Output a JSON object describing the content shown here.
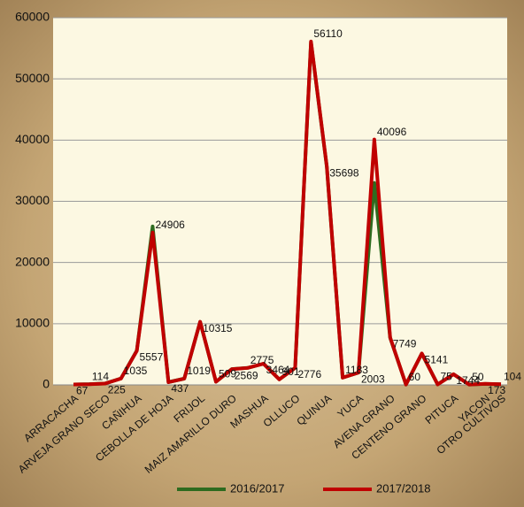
{
  "chart_data": {
    "type": "line",
    "categories": [
      "ARRACACHA",
      null,
      "ARVEJA GRANO SECO",
      null,
      "CAÑIHUA",
      null,
      "CEBOLLA DE HOJA",
      null,
      "FRIJOL",
      null,
      "MAIZ AMARILLO DURO",
      null,
      "MASHUA",
      null,
      "OLLUCO",
      null,
      "QUINUA",
      null,
      "YUCA",
      null,
      "AVENA GRANO",
      null,
      "CENTENO GRANO",
      null,
      "PITUCA",
      null,
      "YACON",
      "OTRO CULTIVOS"
    ],
    "series": [
      {
        "name": "2016/2017",
        "color": "#2e6b1f",
        "values": [
          70,
          120,
          230,
          1050,
          5600,
          25900,
          450,
          1030,
          10300,
          520,
          2580,
          2780,
          3470,
          910,
          2780,
          56000,
          35600,
          1190,
          2010,
          33000,
          7700,
          60,
          5100,
          80,
          1750,
          50,
          170,
          100
        ]
      },
      {
        "name": "2017/2018",
        "color": "#c00000",
        "values": [
          67,
          114,
          225,
          1035,
          5557,
          24906,
          437,
          1019,
          10315,
          509,
          2569,
          2775,
          3464,
          901,
          2776,
          56110,
          35698,
          1183,
          2003,
          40096,
          7749,
          60,
          5141,
          75,
          1744,
          50,
          173,
          104
        ]
      }
    ],
    "ylim": [
      0,
      60000
    ],
    "yticks": [
      0,
      10000,
      20000,
      30000,
      40000,
      50000,
      60000
    ],
    "grid": true
  }
}
